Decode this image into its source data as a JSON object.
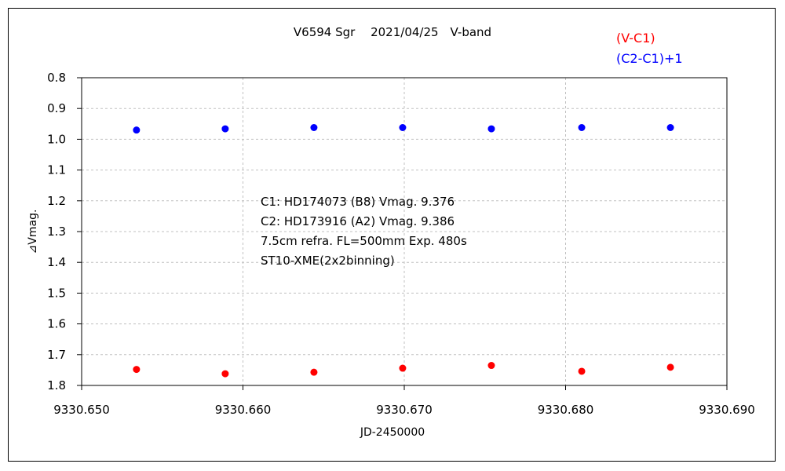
{
  "chart_data": {
    "type": "scatter",
    "title": "V6594 Sgr　 2021/04/25　V-band",
    "xlabel": "JD-2450000",
    "ylabel": "⊿Vmag.",
    "xlim": [
      9330.65,
      9330.69
    ],
    "ylim": [
      0.8,
      1.8
    ],
    "y_inverted": true,
    "x_ticks": [
      "9330.650",
      "9330.660",
      "9330.670",
      "9330.680",
      "9330.690"
    ],
    "y_ticks": [
      "0.8",
      "0.9",
      "1.0",
      "1.1",
      "1.2",
      "1.3",
      "1.4",
      "1.5",
      "1.6",
      "1.7",
      "1.8"
    ],
    "grid": true,
    "legend_position": "top-right",
    "series": [
      {
        "name": "(V-C1)",
        "color": "#ff0000",
        "x": [
          9330.6534,
          9330.6589,
          9330.6644,
          9330.6699,
          9330.6754,
          9330.681,
          9330.6865
        ],
        "y": [
          1.748,
          1.762,
          1.757,
          1.744,
          1.735,
          1.754,
          1.741
        ]
      },
      {
        "name": "(C2-C1)+1",
        "color": "#0000ff",
        "x": [
          9330.6534,
          9330.6589,
          9330.6644,
          9330.6699,
          9330.6754,
          9330.681,
          9330.6865
        ],
        "y": [
          0.97,
          0.966,
          0.962,
          0.962,
          0.966,
          0.962,
          0.962
        ]
      }
    ],
    "annotations": [
      "C1: HD174073 (B8) Vmag. 9.376",
      "C2: HD173916 (A2) Vmag. 9.386",
      "7.5cm refra. FL=500mm  Exp. 480s",
      "ST10-XME(2x2binning)"
    ]
  }
}
